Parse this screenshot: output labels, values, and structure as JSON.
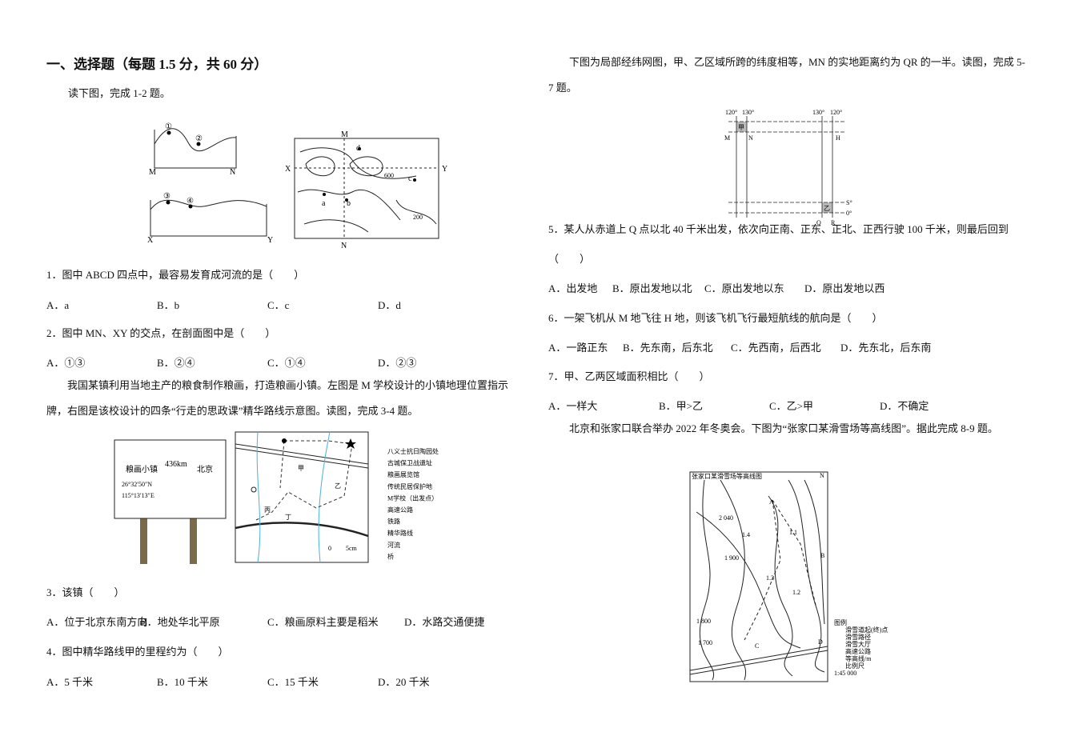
{
  "left": {
    "section_title": "一、选择题（每题 1.5 分，共 60 分）",
    "intro_1": "读下图，完成 1-2 题。",
    "figure_1": {
      "labels": [
        "①",
        "②",
        "M",
        "N",
        "③",
        "④",
        "X",
        "Y",
        "M",
        "X",
        "Y",
        "N",
        "a",
        "b",
        "c",
        "d",
        "600",
        "200"
      ]
    },
    "q1": {
      "stem": "1．图中 ABCD 四点中，最容易发育成河流的是（　　）",
      "options": [
        "A．a",
        "B．b",
        "C．c",
        "D．d"
      ]
    },
    "q2": {
      "stem": "2．图中 MN、XY 的交点，在剖面图中是（　　）",
      "options": [
        "A．①③",
        "B．②④",
        "C．①④",
        "D．②③"
      ]
    },
    "intro_2": "我国某镇利用当地主产的粮食制作粮画，打造粮画小镇。左图是 M 学校设计的小镇地理位置指示牌，右图是该校设计的四条“行走的思政课”精华路线示意图。读图，完成 3-4 题。",
    "figure_2": {
      "sign": [
        "粮画小镇",
        "436km",
        "北京",
        "26°32′50″N",
        "115°13′13″E"
      ],
      "map": [
        "甲",
        "乙",
        "丙",
        "丁",
        "0",
        "5cm"
      ],
      "legend": [
        "八义士抗日陶园处",
        "古城保卫战遗址",
        "粮画展览馆",
        "传统民居保护地",
        "M学校（出发点）",
        "高速公路",
        "铁路",
        "精华路线",
        "河流",
        "桥"
      ]
    },
    "q3": {
      "stem": "3．该镇（　　）",
      "options": [
        "A．位于北京东南方向",
        "B．地处华北平原",
        "C．粮画原料主要是稻米",
        "D．水路交通便捷"
      ]
    },
    "q4": {
      "stem": "4．图中精华路线甲的里程约为（　　）",
      "options": [
        "A．5 千米",
        "B．10 千米",
        "C．15 千米",
        "D．20 千米"
      ]
    }
  },
  "right": {
    "intro_1": "下图为局部经纬网图，甲、乙区域所跨的纬度相等，MN 的实地距离约为 QR 的一半。读图，完成 5-7 题。",
    "figure_3": {
      "labels": [
        "120°",
        "130°",
        "130°",
        "120°",
        "甲",
        "M",
        "N",
        "H",
        "乙",
        "S°",
        "0°",
        "Q",
        "R"
      ]
    },
    "q5": {
      "stem": "5．某人从赤道上 Q 点以北 40 千米出发，依次向正南、正东、正北、正西行驶 100 千米，则最后回到（　　）",
      "options": [
        "A．出发地",
        "B．原出发地以北",
        "C．原出发地以东",
        "D．原出发地以西"
      ]
    },
    "q6": {
      "stem": "6．一架飞机从 M 地飞往 H 地，则该飞机飞行最短航线的航向是（　　）",
      "options": [
        "A．一路正东",
        "B．先东南，后东北",
        "C．先西南，后西北",
        "D．先东北，后东南"
      ]
    },
    "q7": {
      "stem": "7．甲、乙两区域面积相比（　　）",
      "options": [
        "A．一样大",
        "B．甲>乙",
        "C．乙>甲",
        "D．不确定"
      ]
    },
    "intro_2": "北京和张家口联合举办 2022 年冬奥会。下图为“张家口某滑雪场等高线图”。据此完成 8-9 题。",
    "figure_4": {
      "title": "张家口某滑雪场等高线图",
      "labels": [
        "N",
        "A",
        "B",
        "C",
        "D",
        "1.1",
        "1.2",
        "1.3",
        "1.4",
        "2 040",
        "1 900",
        "1 800",
        "1 700"
      ],
      "legend": [
        "图例",
        "滑雪道起(终)点",
        "滑雪路径",
        "滑雪大厅",
        "高速公路",
        "等高线/m",
        "比例尺",
        "1:45 000"
      ]
    }
  }
}
